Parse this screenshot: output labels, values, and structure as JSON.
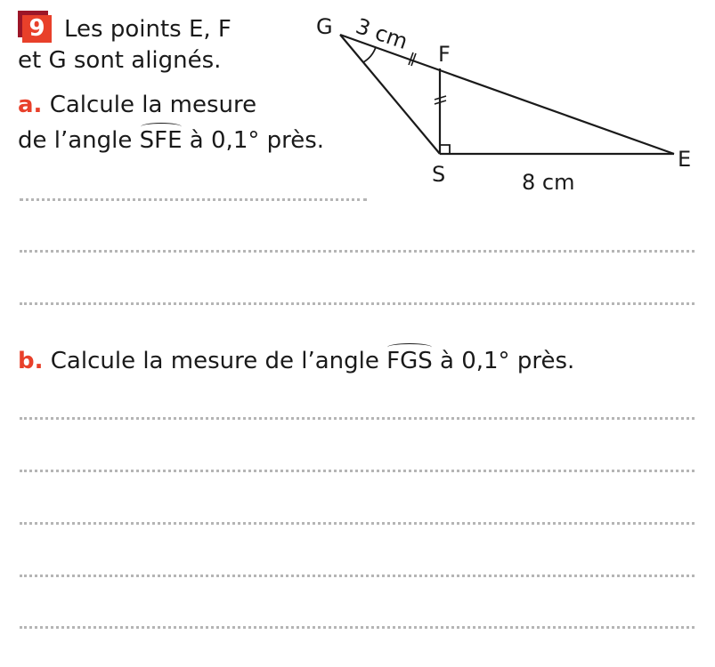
{
  "exercise": {
    "number": "9",
    "intro_line1": "Les points E, F",
    "intro_line2": "et G sont alignés."
  },
  "question_a": {
    "label": "a.",
    "line1": "Calcule la mesure",
    "line2_prefix": "de l’angle ",
    "angle": "SFE",
    "line2_suffix": " à 0,1° près."
  },
  "question_b": {
    "label": "b.",
    "prefix": "Calcule la mesure de l’angle ",
    "angle": "FGS",
    "suffix": " à 0,1° près."
  },
  "figure": {
    "points": {
      "G": "G",
      "F": "F",
      "S": "S",
      "E": "E"
    },
    "length_GF": "3 cm",
    "length_SE": "8 cm"
  },
  "colors": {
    "accent": "#e8402a",
    "accent_dark": "#9c1628"
  }
}
